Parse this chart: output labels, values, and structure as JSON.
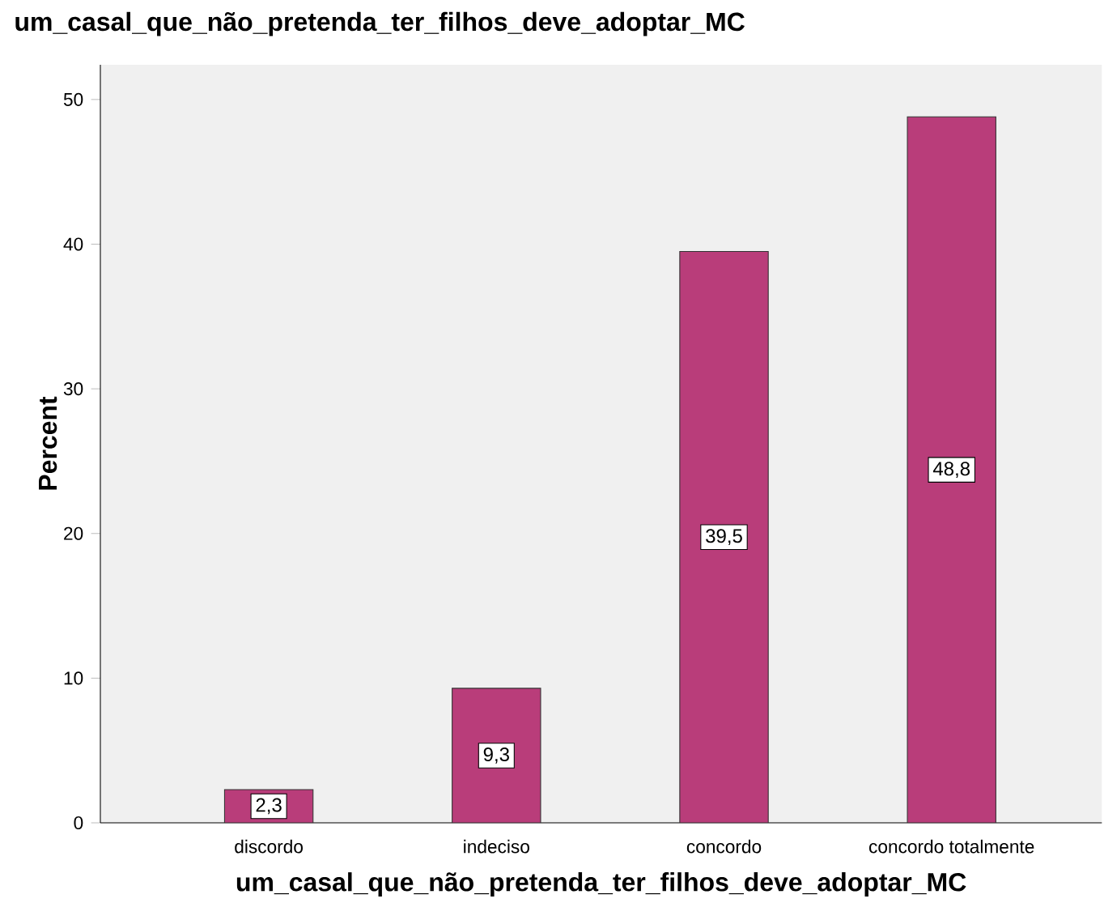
{
  "chart_data": {
    "type": "bar",
    "title": "um_casal_que_não_pretenda_ter_filhos_deve_adoptar_MC",
    "xlabel": "um_casal_que_não_pretenda_ter_filhos_deve_adoptar_MC",
    "ylabel": "Percent",
    "categories": [
      "discordo",
      "indeciso",
      "concordo",
      "concordo totalmente"
    ],
    "values": [
      2.3,
      9.3,
      39.5,
      48.8
    ],
    "color": "#b93d7a",
    "value_labels": [
      "2,3",
      "9,3",
      "39,5",
      "48,8"
    ],
    "ylim": [
      0,
      52.4
    ],
    "yticks": [
      0,
      10,
      20,
      30,
      40,
      50
    ],
    "grid": false
  }
}
